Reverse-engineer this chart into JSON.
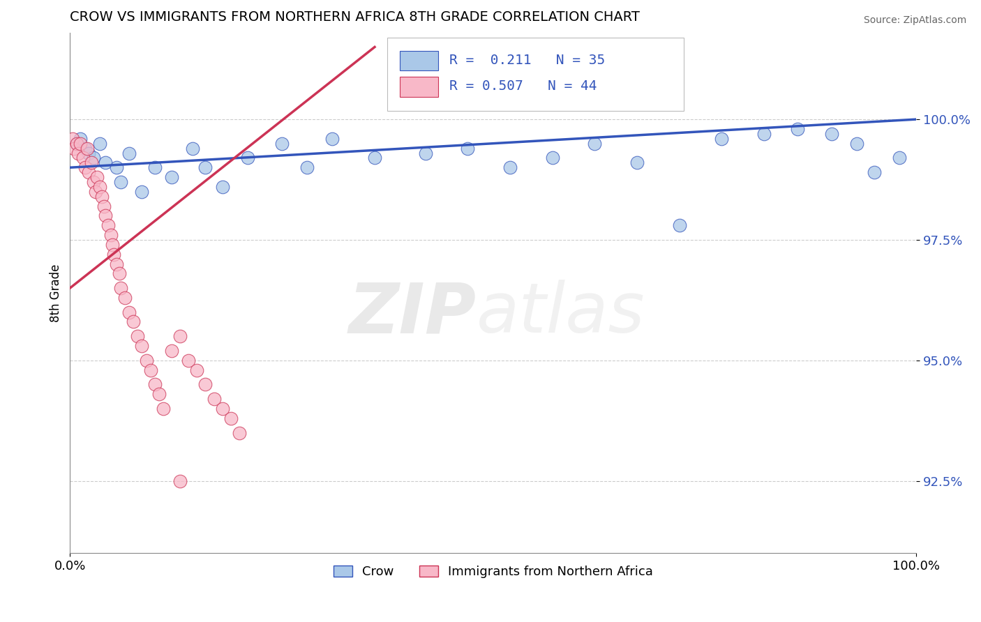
{
  "title": "CROW VS IMMIGRANTS FROM NORTHERN AFRICA 8TH GRADE CORRELATION CHART",
  "source": "Source: ZipAtlas.com",
  "ylabel": "8th Grade",
  "y_tick_values": [
    92.5,
    95.0,
    97.5,
    100.0
  ],
  "xlim": [
    0.0,
    100.0
  ],
  "ylim": [
    91.0,
    101.8
  ],
  "legend_r_blue": "R =  0.211",
  "legend_n_blue": "N = 35",
  "legend_r_pink": "R = 0.507",
  "legend_n_pink": "N = 44",
  "legend_label_blue": "Crow",
  "legend_label_pink": "Immigrants from Northern Africa",
  "blue_color": "#aac8e8",
  "pink_color": "#f8b8c8",
  "trend_blue_color": "#3355bb",
  "trend_pink_color": "#cc3355",
  "blue_x": [
    0.8,
    1.2,
    1.8,
    2.2,
    2.8,
    3.5,
    4.2,
    5.5,
    6.0,
    7.0,
    8.5,
    10.0,
    12.0,
    14.5,
    16.0,
    18.0,
    21.0,
    25.0,
    28.0,
    31.0,
    36.0,
    42.0,
    47.0,
    52.0,
    57.0,
    62.0,
    67.0,
    72.0,
    77.0,
    82.0,
    86.0,
    90.0,
    93.0,
    95.0,
    98.0
  ],
  "blue_y": [
    99.5,
    99.6,
    99.4,
    99.3,
    99.2,
    99.5,
    99.1,
    99.0,
    98.7,
    99.3,
    98.5,
    99.0,
    98.8,
    99.4,
    99.0,
    98.6,
    99.2,
    99.5,
    99.0,
    99.6,
    99.2,
    99.3,
    99.4,
    99.0,
    99.2,
    99.5,
    99.1,
    97.8,
    99.6,
    99.7,
    99.8,
    99.7,
    99.5,
    98.9,
    99.2
  ],
  "pink_x": [
    0.3,
    0.5,
    0.8,
    1.0,
    1.2,
    1.5,
    1.8,
    2.0,
    2.2,
    2.5,
    2.8,
    3.0,
    3.2,
    3.5,
    3.8,
    4.0,
    4.2,
    4.5,
    4.8,
    5.0,
    5.2,
    5.5,
    5.8,
    6.0,
    6.5,
    7.0,
    7.5,
    8.0,
    8.5,
    9.0,
    9.5,
    10.0,
    10.5,
    11.0,
    12.0,
    13.0,
    14.0,
    15.0,
    16.0,
    17.0,
    18.0,
    19.0,
    20.0,
    13.0
  ],
  "pink_y": [
    99.6,
    99.4,
    99.5,
    99.3,
    99.5,
    99.2,
    99.0,
    99.4,
    98.9,
    99.1,
    98.7,
    98.5,
    98.8,
    98.6,
    98.4,
    98.2,
    98.0,
    97.8,
    97.6,
    97.4,
    97.2,
    97.0,
    96.8,
    96.5,
    96.3,
    96.0,
    95.8,
    95.5,
    95.3,
    95.0,
    94.8,
    94.5,
    94.3,
    94.0,
    95.2,
    95.5,
    95.0,
    94.8,
    94.5,
    94.2,
    94.0,
    93.8,
    93.5,
    92.5
  ],
  "blue_trend_x0": 0.0,
  "blue_trend_x1": 100.0,
  "blue_trend_y0": 99.0,
  "blue_trend_y1": 100.0,
  "pink_trend_x0": 0.0,
  "pink_trend_x1": 36.0,
  "pink_trend_y0": 96.5,
  "pink_trend_y1": 101.5
}
